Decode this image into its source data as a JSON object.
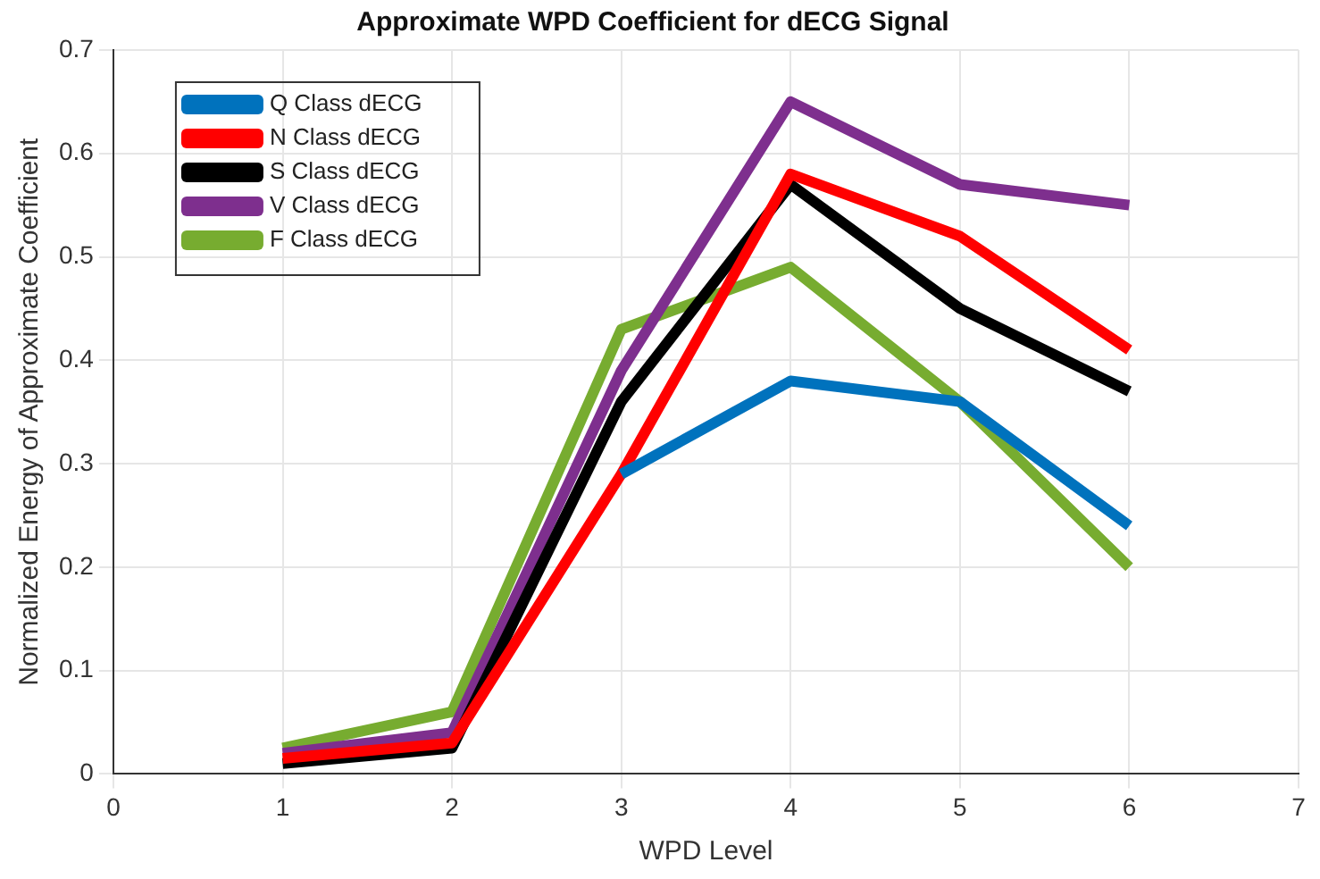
{
  "chart_data": {
    "type": "line",
    "title": "Approximate WPD Coefficient for dECG Signal",
    "xlabel": "WPD Level",
    "ylabel": "Normalized Energy of Approximate Coefficient",
    "x": [
      1,
      2,
      3,
      4,
      5,
      6
    ],
    "series": [
      {
        "name": "Q Class dECG",
        "color": "#0072bd",
        "values": [
          null,
          null,
          0.29,
          0.38,
          0.36,
          0.24
        ]
      },
      {
        "name": "N Class dECG",
        "color": "#ff0000",
        "values": [
          0.015,
          0.03,
          0.29,
          0.58,
          0.52,
          0.41
        ]
      },
      {
        "name": "S Class dECG",
        "color": "#000000",
        "values": [
          0.01,
          0.025,
          0.36,
          0.57,
          0.45,
          0.37
        ]
      },
      {
        "name": "V Class dECG",
        "color": "#7e2f8e",
        "values": [
          0.02,
          0.04,
          0.39,
          0.65,
          0.57,
          0.55
        ]
      },
      {
        "name": "F Class dECG",
        "color": "#77ac30",
        "values": [
          0.025,
          0.06,
          0.43,
          0.49,
          0.36,
          0.2
        ]
      }
    ],
    "xlim": [
      0,
      7
    ],
    "xticks": [
      0,
      1,
      2,
      3,
      4,
      5,
      6,
      7
    ],
    "ylim": [
      0,
      0.7
    ],
    "yticks": [
      0,
      0.1,
      0.2,
      0.3,
      0.4,
      0.5,
      0.6,
      0.7
    ],
    "grid": true,
    "legend": "top left",
    "marker": "none",
    "line_style": "solid"
  }
}
